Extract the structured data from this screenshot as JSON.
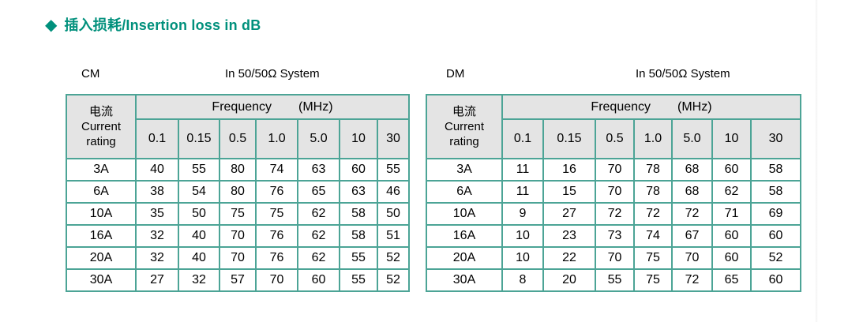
{
  "title": {
    "icon": "◆",
    "text": "插入损耗/Insertion loss in dB"
  },
  "colors": {
    "accent": "#00907C",
    "table_border": "#4CA496",
    "table_border_outer": "#2F9486",
    "header_bg": "#E4E4E4",
    "body_text": "#000000"
  },
  "tables": [
    {
      "mode_label": "CM",
      "system_label": "In 50/50Ω System",
      "corner_header": {
        "line1": "电流",
        "line2": "Current",
        "line3": "rating"
      },
      "frequency_label": "Frequency",
      "frequency_unit": "(MHz)",
      "frequencies": [
        "0.1",
        "0.15",
        "0.5",
        "1.0",
        "5.0",
        "10",
        "30"
      ],
      "rows": [
        {
          "rating": "3A",
          "values": [
            "40",
            "55",
            "80",
            "74",
            "63",
            "60",
            "55"
          ]
        },
        {
          "rating": "6A",
          "values": [
            "38",
            "54",
            "80",
            "76",
            "65",
            "63",
            "46"
          ]
        },
        {
          "rating": "10A",
          "values": [
            "35",
            "50",
            "75",
            "75",
            "62",
            "58",
            "50"
          ]
        },
        {
          "rating": "16A",
          "values": [
            "32",
            "40",
            "70",
            "76",
            "62",
            "58",
            "51"
          ]
        },
        {
          "rating": "20A",
          "values": [
            "32",
            "40",
            "70",
            "76",
            "62",
            "55",
            "52"
          ]
        },
        {
          "rating": "30A",
          "values": [
            "27",
            "32",
            "57",
            "70",
            "60",
            "55",
            "52"
          ]
        }
      ]
    },
    {
      "mode_label": "DM",
      "system_label": "In 50/50Ω System",
      "corner_header": {
        "line1": "电流",
        "line2": "Current",
        "line3": "rating"
      },
      "frequency_label": "Frequency",
      "frequency_unit": "(MHz)",
      "frequencies": [
        "0.1",
        "0.15",
        "0.5",
        "1.0",
        "5.0",
        "10",
        "30"
      ],
      "rows": [
        {
          "rating": "3A",
          "values": [
            "11",
            "16",
            "70",
            "78",
            "68",
            "60",
            "58"
          ]
        },
        {
          "rating": "6A",
          "values": [
            "11",
            "15",
            "70",
            "78",
            "68",
            "62",
            "58"
          ]
        },
        {
          "rating": "10A",
          "values": [
            "9",
            "27",
            "72",
            "72",
            "72",
            "71",
            "69"
          ]
        },
        {
          "rating": "16A",
          "values": [
            "10",
            "23",
            "73",
            "74",
            "67",
            "60",
            "60"
          ]
        },
        {
          "rating": "20A",
          "values": [
            "10",
            "22",
            "70",
            "75",
            "70",
            "60",
            "52"
          ]
        },
        {
          "rating": "30A",
          "values": [
            "8",
            "20",
            "55",
            "75",
            "72",
            "65",
            "60"
          ]
        }
      ]
    }
  ]
}
